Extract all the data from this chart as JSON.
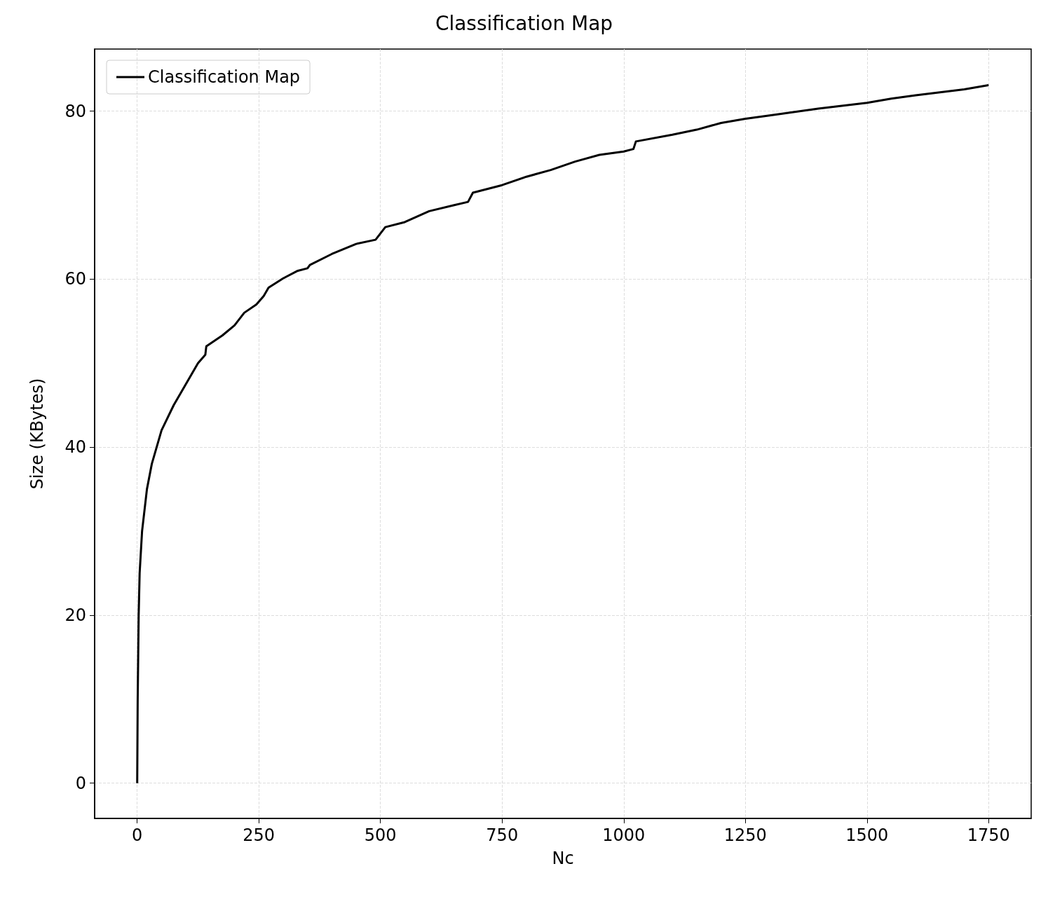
{
  "chart_data": {
    "type": "line",
    "title": "Classification Map",
    "xlabel": "Nc",
    "ylabel": "Size (KBytes)",
    "series": [
      {
        "name": "Classification Map",
        "color": "#000000",
        "x": [
          0,
          1,
          3,
          5,
          10,
          20,
          30,
          50,
          75,
          100,
          125,
          140,
          142,
          175,
          200,
          220,
          245,
          260,
          270,
          300,
          330,
          350,
          355,
          400,
          450,
          490,
          510,
          550,
          600,
          650,
          680,
          690,
          750,
          800,
          850,
          900,
          950,
          1000,
          1020,
          1025,
          1100,
          1150,
          1200,
          1250,
          1300,
          1400,
          1500,
          1550,
          1600,
          1700,
          1750
        ],
        "values": [
          0,
          10,
          20,
          25,
          30,
          35,
          38,
          42,
          45,
          47.5,
          50,
          51,
          52,
          53.3,
          54.5,
          56,
          57,
          58,
          59,
          60.1,
          61,
          61.3,
          61.7,
          63,
          64.2,
          64.7,
          66.2,
          66.8,
          68.1,
          68.8,
          69.2,
          70.3,
          71.2,
          72.2,
          73,
          74,
          74.8,
          75.2,
          75.5,
          76.4,
          77.2,
          77.8,
          78.6,
          79.1,
          79.5,
          80.3,
          81,
          81.5,
          81.9,
          82.6,
          83.1
        ]
      }
    ],
    "xlim": [
      -87.5,
      1837.5
    ],
    "xticks": [
      0,
      250,
      500,
      750,
      1000,
      1250,
      1500,
      1750
    ],
    "ylim": [
      -4.2,
      87.4
    ],
    "yticks": [
      0,
      20,
      40,
      60,
      80
    ],
    "grid": true,
    "legend": "top left",
    "marker": "none",
    "line_style": "solid"
  }
}
